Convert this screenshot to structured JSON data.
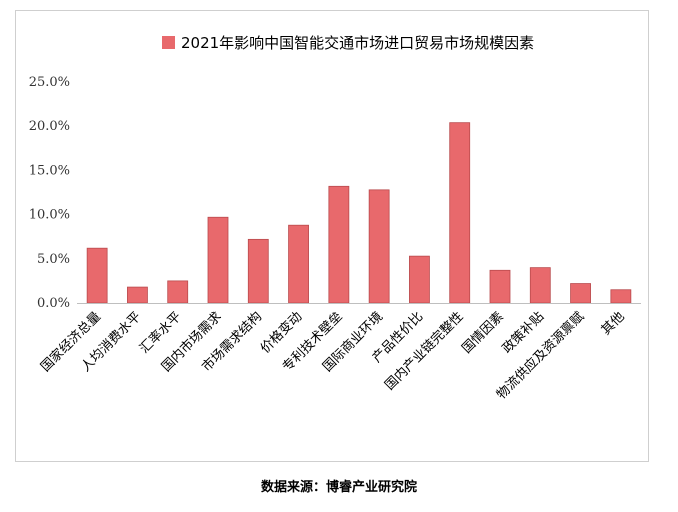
{
  "chart_data": {
    "type": "bar",
    "legend_position": "top",
    "grid": false,
    "series": [
      {
        "name": "2021年影响中国智能交通市场进口贸易市场规模因素",
        "color": "#e8696c",
        "values": [
          6.2,
          1.8,
          2.5,
          9.7,
          7.2,
          8.8,
          13.2,
          12.8,
          5.3,
          20.4,
          3.7,
          4.0,
          2.2,
          1.5
        ]
      }
    ],
    "categories": [
      "国家经济总量",
      "人均消费水平",
      "汇率水平",
      "国内市场需求",
      "市场需求结构",
      "价格变动",
      "专利技术壁垒",
      "国际商业环境",
      "产品性价比",
      "国内产业链完整性",
      "国情因素",
      "政策补贴",
      "物流供应及资源禀赋",
      "其他"
    ],
    "ylim": [
      0,
      25
    ],
    "yticks": [
      "0.0%",
      "5.0%",
      "10.0%",
      "15.0%",
      "20.0%",
      "25.0%"
    ],
    "xlabel": "",
    "ylabel": ""
  },
  "source_note": "数据来源：博睿产业研究院"
}
